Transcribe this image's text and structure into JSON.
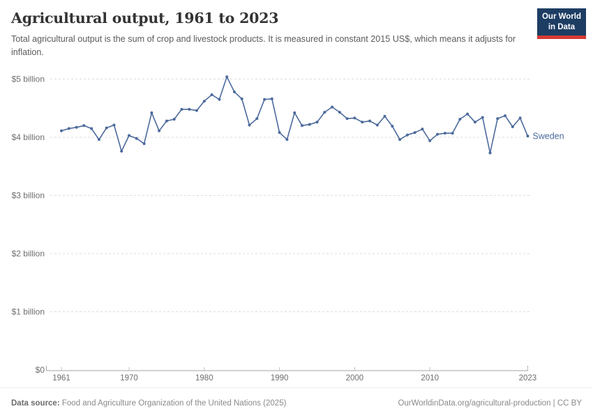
{
  "header": {
    "title": "Agricultural output, 1961 to 2023",
    "subtitle": "Total agricultural output is the sum of crop and livestock products. It is measured in constant 2015 US$, which means it adjusts for inflation."
  },
  "logo": {
    "line1": "Our World",
    "line2": "in Data"
  },
  "chart_data": {
    "type": "line",
    "title": "Agricultural output, 1961 to 2023",
    "entity": "Sweden",
    "series_label": "Sweden",
    "unit": "constant 2015 US$ (billions)",
    "xlim": [
      1961,
      2023
    ],
    "ylim": [
      0,
      5.25
    ],
    "grid": "horizontal dashed gridlines",
    "legend_position": "entity label right of line end",
    "line_color": "#4c6a9c",
    "xticks": [
      1961,
      1970,
      1980,
      1990,
      2000,
      2010,
      2023
    ],
    "yticks": [
      {
        "value": 0,
        "label": "$0"
      },
      {
        "value": 1,
        "label": "$1 billion"
      },
      {
        "value": 2,
        "label": "$2 billion"
      },
      {
        "value": 3,
        "label": "$3 billion"
      },
      {
        "value": 4,
        "label": "$4 billion"
      },
      {
        "value": 5,
        "label": "$5 billion"
      }
    ],
    "years": [
      1961,
      1962,
      1963,
      1964,
      1965,
      1966,
      1967,
      1968,
      1969,
      1970,
      1971,
      1972,
      1973,
      1974,
      1975,
      1976,
      1977,
      1978,
      1979,
      1980,
      1981,
      1982,
      1983,
      1984,
      1985,
      1986,
      1987,
      1988,
      1989,
      1990,
      1991,
      1992,
      1993,
      1994,
      1995,
      1996,
      1997,
      1998,
      1999,
      2000,
      2001,
      2002,
      2003,
      2004,
      2005,
      2006,
      2007,
      2008,
      2009,
      2010,
      2011,
      2012,
      2013,
      2014,
      2015,
      2016,
      2017,
      2018,
      2019,
      2020,
      2021,
      2022,
      2023
    ],
    "values": [
      4.11,
      4.15,
      4.17,
      4.2,
      4.15,
      3.96,
      4.16,
      4.21,
      3.76,
      4.03,
      3.98,
      3.89,
      4.42,
      4.11,
      4.28,
      4.31,
      4.48,
      4.48,
      4.46,
      4.62,
      4.73,
      4.65,
      5.04,
      4.78,
      4.66,
      4.21,
      4.32,
      4.65,
      4.66,
      4.08,
      3.96,
      4.42,
      4.2,
      4.22,
      4.26,
      4.43,
      4.52,
      4.43,
      4.32,
      4.33,
      4.26,
      4.28,
      4.21,
      4.36,
      4.19,
      3.96,
      4.04,
      4.08,
      4.14,
      3.94,
      4.05,
      4.07,
      4.07,
      4.31,
      4.4,
      4.26,
      4.34,
      3.73,
      4.32,
      4.37,
      4.18,
      4.33,
      4.02
    ]
  },
  "footer": {
    "source_label": "Data source:",
    "source_text": "Food and Agriculture Organization of the United Nations (2025)",
    "right_text": "OurWorldinData.org/agricultural-production | CC BY"
  },
  "colors": {
    "line": "#4c6a9c",
    "gridline": "#dcdcdc",
    "axis": "#a3a3a3",
    "tick": "#c2c2c2",
    "logo_bg": "#1d3d63",
    "logo_stripe": "#d73a35"
  }
}
